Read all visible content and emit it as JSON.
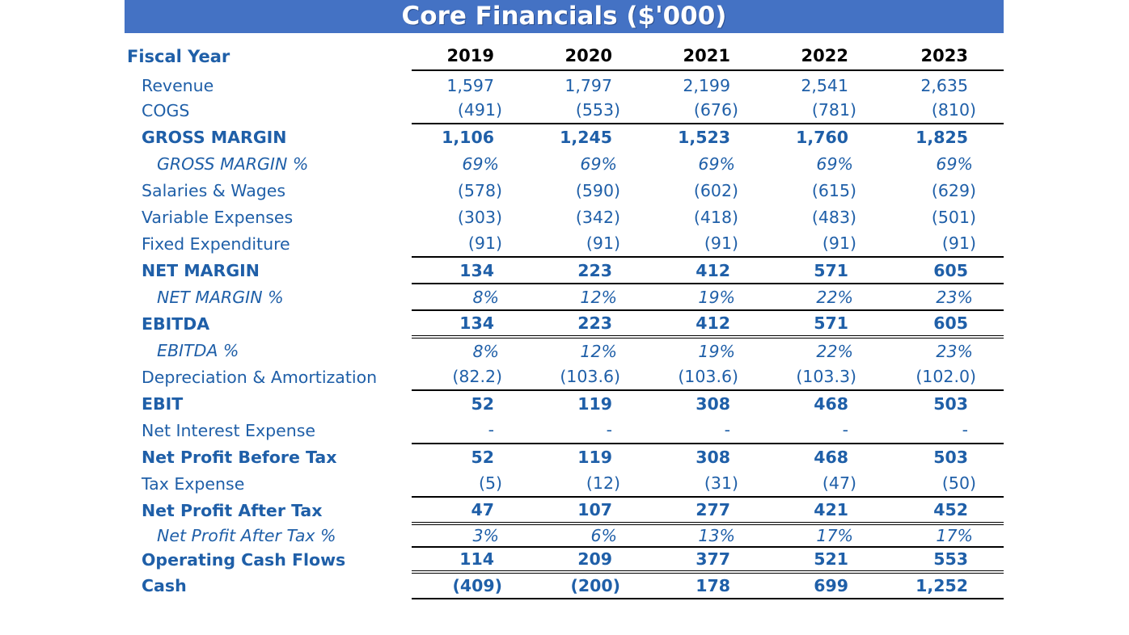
{
  "title": "Core Financials ($'000)",
  "header": {
    "label": "Fiscal Year",
    "years": [
      "2019",
      "2020",
      "2021",
      "2022",
      "2023"
    ]
  },
  "rows": [
    {
      "label": "Revenue",
      "values": [
        "1,597",
        "1,797",
        "2,199",
        "2,541",
        "2,635"
      ]
    },
    {
      "label": "COGS",
      "values": [
        "(491)",
        "(553)",
        "(676)",
        "(781)",
        "(810)"
      ]
    },
    {
      "label": "GROSS MARGIN",
      "values": [
        "1,106",
        "1,245",
        "1,523",
        "1,760",
        "1,825"
      ]
    },
    {
      "label": "GROSS MARGIN %",
      "values": [
        "69%",
        "69%",
        "69%",
        "69%",
        "69%"
      ]
    },
    {
      "label": "Salaries & Wages",
      "values": [
        "(578)",
        "(590)",
        "(602)",
        "(615)",
        "(629)"
      ]
    },
    {
      "label": "Variable Expenses",
      "values": [
        "(303)",
        "(342)",
        "(418)",
        "(483)",
        "(501)"
      ]
    },
    {
      "label": "Fixed Expenditure",
      "values": [
        "(91)",
        "(91)",
        "(91)",
        "(91)",
        "(91)"
      ]
    },
    {
      "label": "NET MARGIN",
      "values": [
        "134",
        "223",
        "412",
        "571",
        "605"
      ]
    },
    {
      "label": "NET MARGIN %",
      "values": [
        "8%",
        "12%",
        "19%",
        "22%",
        "23%"
      ]
    },
    {
      "label": "EBITDA",
      "values": [
        "134",
        "223",
        "412",
        "571",
        "605"
      ]
    },
    {
      "label": "EBITDA %",
      "values": [
        "8%",
        "12%",
        "19%",
        "22%",
        "23%"
      ]
    },
    {
      "label": "Depreciation & Amortization",
      "values": [
        "(82.2)",
        "(103.6)",
        "(103.6)",
        "(103.3)",
        "(102.0)"
      ]
    },
    {
      "label": "EBIT",
      "values": [
        "52",
        "119",
        "308",
        "468",
        "503"
      ]
    },
    {
      "label": "Net Interest Expense",
      "values": [
        "-",
        "-",
        "-",
        "-",
        "-"
      ]
    },
    {
      "label": "Net Profit Before Tax",
      "values": [
        "52",
        "119",
        "308",
        "468",
        "503"
      ]
    },
    {
      "label": "Tax Expense",
      "values": [
        "(5)",
        "(12)",
        "(31)",
        "(47)",
        "(50)"
      ]
    },
    {
      "label": "Net Profit After Tax",
      "values": [
        "47",
        "107",
        "277",
        "421",
        "452"
      ]
    },
    {
      "label": "Net Profit After Tax %",
      "values": [
        "3%",
        "6%",
        "13%",
        "17%",
        "17%"
      ]
    },
    {
      "label": "Operating Cash Flows",
      "values": [
        "114",
        "209",
        "377",
        "521",
        "553"
      ]
    },
    {
      "label": "Cash",
      "values": [
        "(409)",
        "(200)",
        "178",
        "699",
        "1,252"
      ]
    }
  ]
}
